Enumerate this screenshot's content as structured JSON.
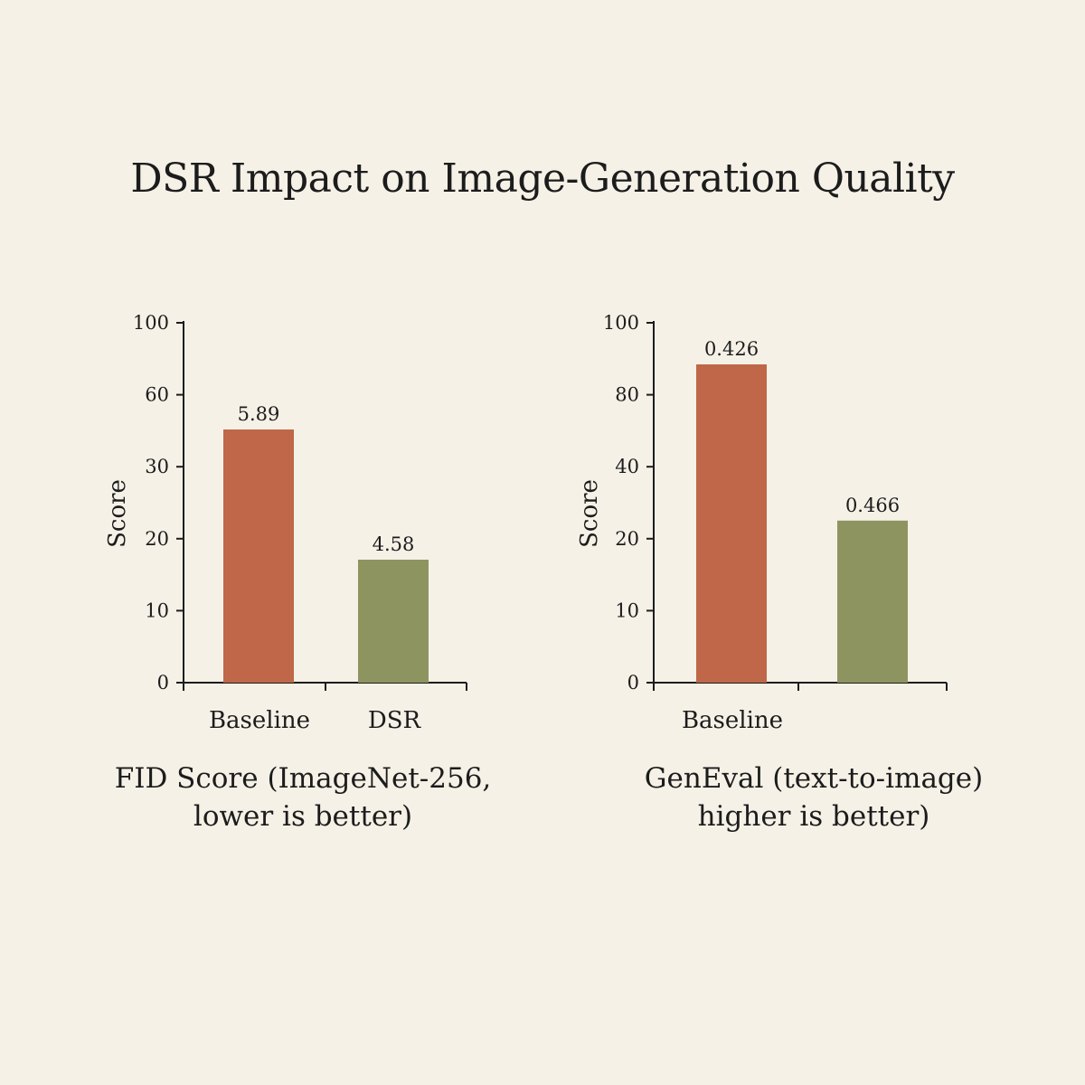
{
  "title": "DSR Impact on Image-Generation Quality",
  "colors": {
    "background": "#f5f1e7",
    "baseline_bar": "#bf6748",
    "dsr_bar": "#8e945f",
    "axis": "#1c1c1c"
  },
  "chart_data": [
    {
      "type": "bar",
      "caption_line1": "FID Score (ImageNet-256,",
      "caption_line2": "lower is better)",
      "ylabel": "Score",
      "yticks": [
        100,
        60,
        30,
        20,
        10,
        0
      ],
      "categories": [
        "Baseline",
        "DSR"
      ],
      "bars": [
        {
          "category": "Baseline",
          "label": "5.89",
          "height_level": 3.5,
          "color": "#bf6748"
        },
        {
          "category": "DSR",
          "label": "4.58",
          "height_level": 1.7,
          "color": "#8e945f"
        }
      ]
    },
    {
      "type": "bar",
      "caption_line1": "GenEval (text-to-image)",
      "caption_line2": "higher is better)",
      "ylabel": "Score",
      "yticks": [
        100,
        80,
        40,
        20,
        10,
        0
      ],
      "categories": [
        "Baseline",
        ""
      ],
      "bars": [
        {
          "category": "Baseline",
          "label": "0.426",
          "height_level": 4.4,
          "color": "#bf6748"
        },
        {
          "category": "",
          "label": "0.466",
          "height_level": 2.24,
          "color": "#8e945f"
        }
      ]
    }
  ]
}
